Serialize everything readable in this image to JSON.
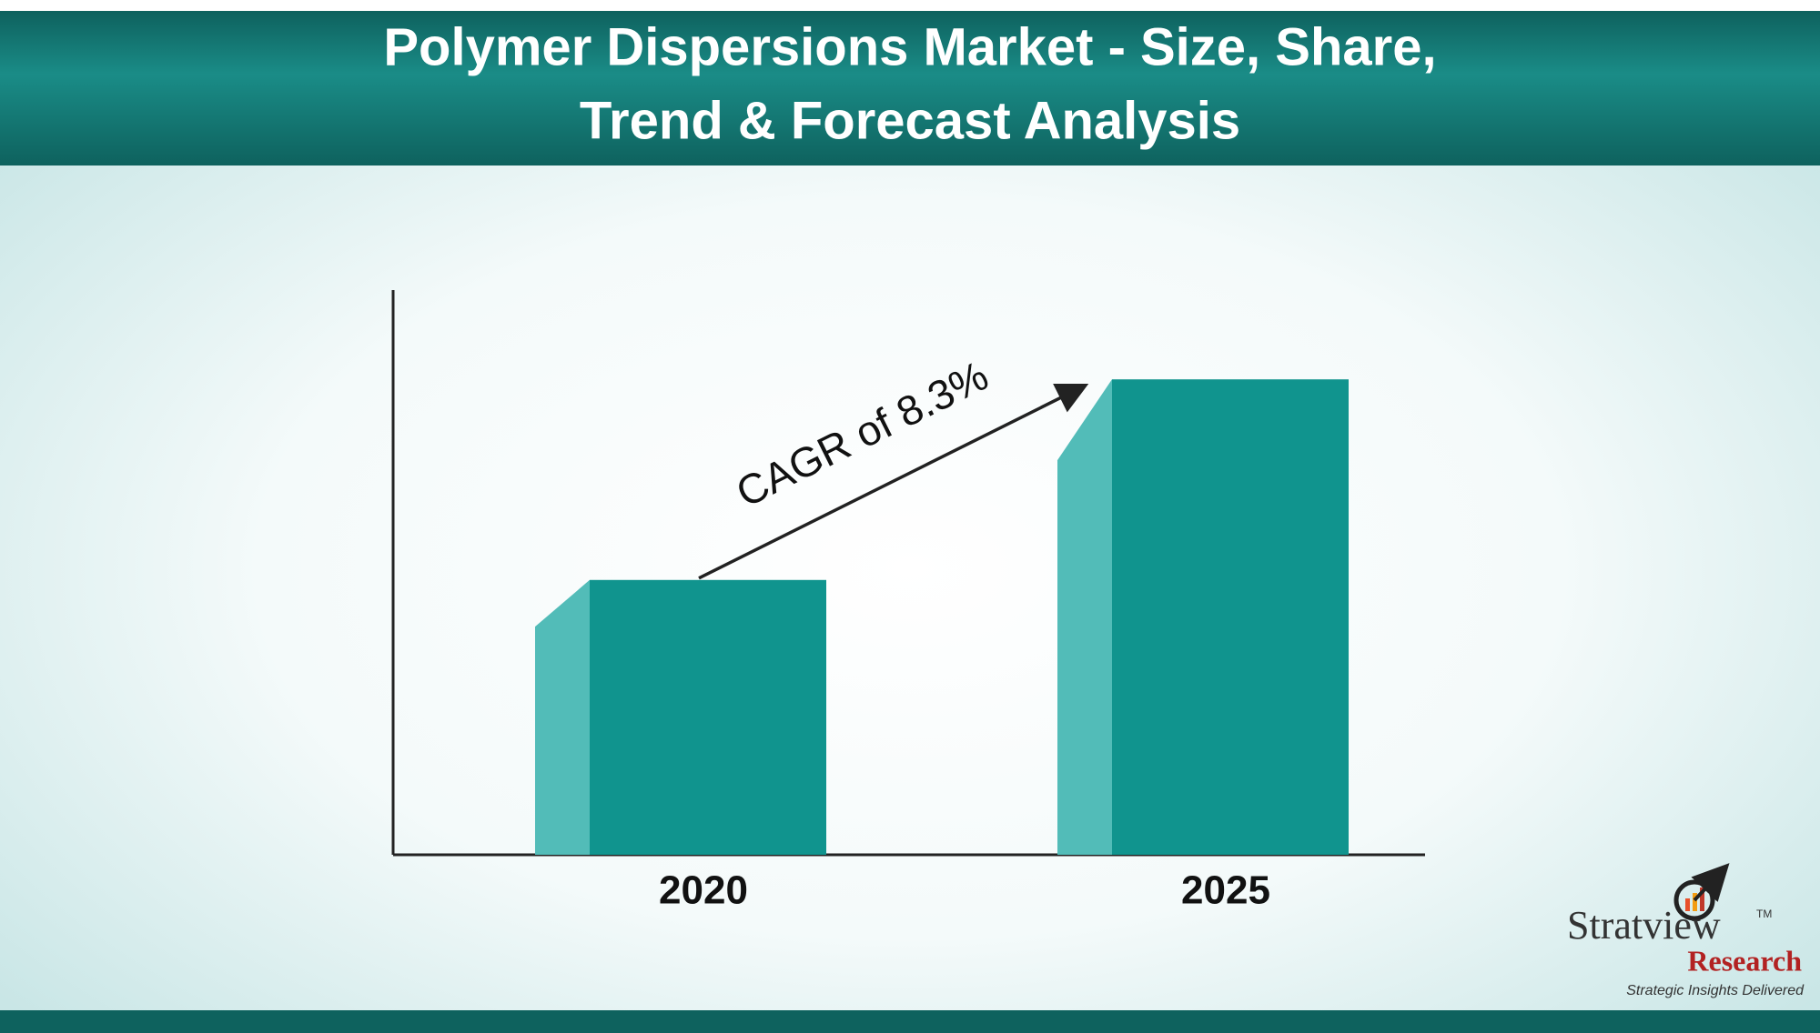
{
  "chart_data": {
    "type": "bar",
    "title_lines": [
      "Polymer Dispersions Market - Size, Share,",
      "Trend & Forecast Analysis"
    ],
    "categories": [
      "2020",
      "2025"
    ],
    "values": [
      237,
      410
    ],
    "ylim": [
      0,
      487
    ],
    "color": "#10948e",
    "side_color": "#52bcb8",
    "annotation": "CAGR of 8.3%"
  },
  "logo": {
    "name": "Stratview",
    "trademark": "TM",
    "subname": "Research",
    "tagline": "Strategic Insights Delivered"
  }
}
